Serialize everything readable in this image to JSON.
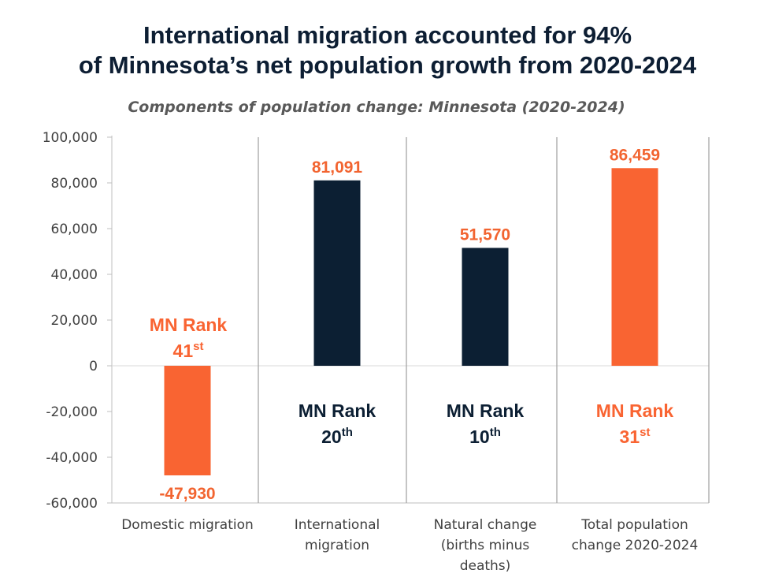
{
  "header": {
    "title_line1": "International migration accounted for 94%",
    "title_line2": "of Minnesota’s net population growth from 2020-2024"
  },
  "chart_data": {
    "type": "bar",
    "title": "International migration accounted for 94% of Minnesota’s net population growth from 2020-2024",
    "subtitle": "Components of population change: Minnesota (2020-2024)",
    "xlabel": "",
    "ylabel": "",
    "ylim": [
      -60000,
      100000
    ],
    "yticks": [
      100000,
      80000,
      60000,
      40000,
      20000,
      0,
      -20000,
      -40000,
      -60000
    ],
    "ytick_labels": [
      "100,000",
      "80,000",
      "60,000",
      "40,000",
      "20,000",
      "0",
      "-20,000",
      "-40,000",
      "-60,000"
    ],
    "categories": [
      [
        "Domestic migration"
      ],
      [
        "International",
        "migration"
      ],
      [
        "Natural change",
        "(births minus",
        "deaths)"
      ],
      [
        "Total population",
        "change 2020-2024"
      ]
    ],
    "values": [
      -47930,
      81091,
      51570,
      86459
    ],
    "data_labels": [
      "-47,930",
      "81,091",
      "51,570",
      "86,459"
    ],
    "bar_colors": [
      "#f96432",
      "#0c1f33",
      "#0c1f33",
      "#f96432"
    ],
    "annotations": [
      {
        "text": "MN Rank",
        "rank": "41",
        "suffix": "st",
        "color": "#f96432"
      },
      {
        "text": "MN Rank",
        "rank": "20",
        "suffix": "th",
        "color": "#0c1f33"
      },
      {
        "text": "MN Rank",
        "rank": "10",
        "suffix": "th",
        "color": "#0c1f33"
      },
      {
        "text": "MN Rank",
        "rank": "31",
        "suffix": "st",
        "color": "#f96432"
      }
    ],
    "grid": false,
    "legend": "none"
  },
  "colors": {
    "orange": "#f96432",
    "navy": "#0c1f33",
    "label_orange": "#f26430"
  }
}
